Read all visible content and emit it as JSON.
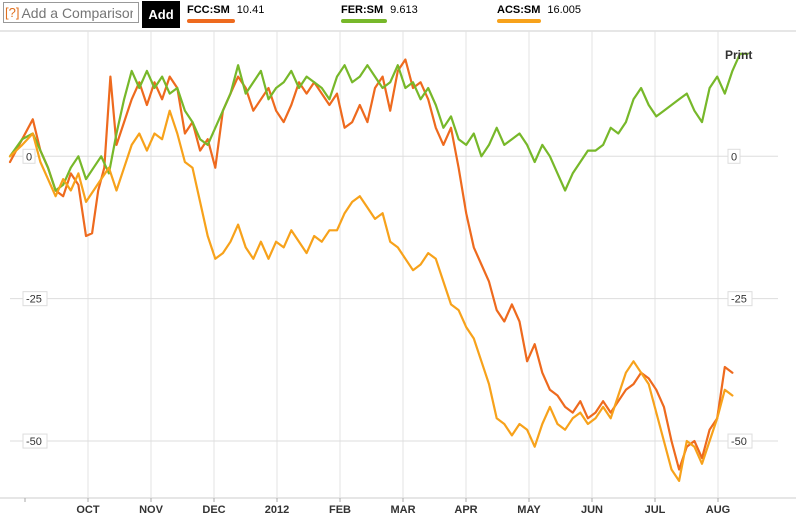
{
  "toolbar": {
    "help_label": "[?]",
    "compare_placeholder": "Add a Comparison",
    "add_label": "Add",
    "print_label": "Print"
  },
  "legend": [
    {
      "ticker": "FCC:SM",
      "value": "10.41",
      "color": "#ee6a1e"
    },
    {
      "ticker": "FER:SM",
      "value": "9.613",
      "color": "#77b82a"
    },
    {
      "ticker": "ACS:SM",
      "value": "16.005",
      "color": "#f7a21b"
    }
  ],
  "chart_data": {
    "type": "line",
    "x_labels": [
      "OCT",
      "NOV",
      "DEC",
      "2012",
      "FEB",
      "MAR",
      "APR",
      "MAY",
      "JUN",
      "JUL",
      "AUG"
    ],
    "y_ticks": [
      "0",
      "-25",
      "-50"
    ],
    "y_tick_values": [
      0,
      -25,
      -50
    ],
    "ylim": [
      -60,
      22
    ],
    "x_range": [
      0,
      50.5
    ],
    "grid": true,
    "series": [
      {
        "name": "FCC:SM",
        "color": "#ee6a1e",
        "points": [
          [
            0,
            -1
          ],
          [
            0.8,
            3
          ],
          [
            1.5,
            6.5
          ],
          [
            2,
            1
          ],
          [
            2.5,
            -2
          ],
          [
            3,
            -6
          ],
          [
            3.5,
            -7
          ],
          [
            4,
            -3
          ],
          [
            4.5,
            -5
          ],
          [
            5,
            -14
          ],
          [
            5.4,
            -13.5
          ],
          [
            5.8,
            -6
          ],
          [
            6.2,
            -2
          ],
          [
            6.6,
            14
          ],
          [
            7,
            2
          ],
          [
            7.5,
            6
          ],
          [
            8,
            10
          ],
          [
            8.5,
            13
          ],
          [
            9,
            9
          ],
          [
            9.5,
            13
          ],
          [
            10,
            10
          ],
          [
            10.5,
            14
          ],
          [
            11,
            12
          ],
          [
            11.5,
            4
          ],
          [
            12,
            6
          ],
          [
            12.5,
            1
          ],
          [
            13,
            3
          ],
          [
            13.5,
            -2
          ],
          [
            14,
            8
          ],
          [
            14.5,
            11
          ],
          [
            15,
            14
          ],
          [
            15.5,
            12
          ],
          [
            16,
            8
          ],
          [
            16.5,
            10
          ],
          [
            17,
            12
          ],
          [
            17.5,
            8
          ],
          [
            18,
            6
          ],
          [
            18.5,
            9
          ],
          [
            19,
            13
          ],
          [
            19.5,
            11
          ],
          [
            20,
            13
          ],
          [
            20.5,
            11
          ],
          [
            21,
            9
          ],
          [
            21.5,
            11
          ],
          [
            22,
            5
          ],
          [
            22.5,
            6
          ],
          [
            23,
            9
          ],
          [
            23.5,
            6
          ],
          [
            24,
            12
          ],
          [
            24.5,
            14
          ],
          [
            25,
            8
          ],
          [
            25.5,
            15
          ],
          [
            26,
            17
          ],
          [
            26.5,
            12
          ],
          [
            27,
            13
          ],
          [
            27.5,
            10
          ],
          [
            28,
            5
          ],
          [
            28.5,
            2
          ],
          [
            29,
            5
          ],
          [
            29.5,
            -2
          ],
          [
            30,
            -10
          ],
          [
            30.5,
            -16
          ],
          [
            31,
            -19
          ],
          [
            31.5,
            -22
          ],
          [
            32,
            -27
          ],
          [
            32.5,
            -29
          ],
          [
            33,
            -26
          ],
          [
            33.5,
            -29
          ],
          [
            34,
            -36
          ],
          [
            34.5,
            -33
          ],
          [
            35,
            -38
          ],
          [
            35.5,
            -41
          ],
          [
            36,
            -42
          ],
          [
            36.5,
            -44
          ],
          [
            37,
            -45
          ],
          [
            37.5,
            -43
          ],
          [
            38,
            -46
          ],
          [
            38.5,
            -45
          ],
          [
            39,
            -43
          ],
          [
            39.5,
            -45
          ],
          [
            40,
            -43
          ],
          [
            40.5,
            -41
          ],
          [
            41,
            -40
          ],
          [
            41.5,
            -38
          ],
          [
            42,
            -39
          ],
          [
            42.5,
            -41
          ],
          [
            43,
            -44
          ],
          [
            43.5,
            -50
          ],
          [
            44,
            -55
          ],
          [
            44.5,
            -51
          ],
          [
            45,
            -50
          ],
          [
            45.5,
            -53
          ],
          [
            46,
            -48
          ],
          [
            46.5,
            -46
          ],
          [
            47,
            -37
          ],
          [
            47.5,
            -38
          ]
        ]
      },
      {
        "name": "FER:SM",
        "color": "#77b82a",
        "points": [
          [
            0,
            0
          ],
          [
            0.8,
            3
          ],
          [
            1.5,
            4
          ],
          [
            2,
            1
          ],
          [
            2.5,
            -2
          ],
          [
            3,
            -6
          ],
          [
            3.5,
            -5
          ],
          [
            4,
            -2
          ],
          [
            4.5,
            0
          ],
          [
            5,
            -4
          ],
          [
            5.5,
            -2
          ],
          [
            6,
            0
          ],
          [
            6.5,
            -3
          ],
          [
            7,
            4
          ],
          [
            7.5,
            10
          ],
          [
            8,
            15
          ],
          [
            8.5,
            12
          ],
          [
            9,
            15
          ],
          [
            9.5,
            12
          ],
          [
            10,
            14
          ],
          [
            10.5,
            11
          ],
          [
            11,
            12
          ],
          [
            11.5,
            8
          ],
          [
            12,
            6
          ],
          [
            12.5,
            3
          ],
          [
            13,
            2
          ],
          [
            13.5,
            5
          ],
          [
            14,
            8
          ],
          [
            14.5,
            11
          ],
          [
            15,
            16
          ],
          [
            15.5,
            11
          ],
          [
            16,
            13
          ],
          [
            16.5,
            15
          ],
          [
            17,
            10
          ],
          [
            17.5,
            12
          ],
          [
            18,
            13
          ],
          [
            18.5,
            15
          ],
          [
            19,
            12
          ],
          [
            19.5,
            14
          ],
          [
            20,
            13
          ],
          [
            20.5,
            12
          ],
          [
            21,
            10
          ],
          [
            21.5,
            14
          ],
          [
            22,
            16
          ],
          [
            22.5,
            13
          ],
          [
            23,
            14
          ],
          [
            23.5,
            16
          ],
          [
            24,
            14
          ],
          [
            24.5,
            12
          ],
          [
            25,
            13
          ],
          [
            25.5,
            16
          ],
          [
            26,
            12
          ],
          [
            26.5,
            13
          ],
          [
            27,
            10
          ],
          [
            27.5,
            12
          ],
          [
            28,
            9
          ],
          [
            28.5,
            5
          ],
          [
            29,
            7
          ],
          [
            29.5,
            3
          ],
          [
            30,
            2
          ],
          [
            30.5,
            4
          ],
          [
            31,
            0
          ],
          [
            31.5,
            2
          ],
          [
            32,
            5
          ],
          [
            32.5,
            2
          ],
          [
            33,
            3
          ],
          [
            33.5,
            4
          ],
          [
            34,
            2
          ],
          [
            34.5,
            -1
          ],
          [
            35,
            2
          ],
          [
            35.5,
            0
          ],
          [
            36,
            -3
          ],
          [
            36.5,
            -6
          ],
          [
            37,
            -3
          ],
          [
            37.5,
            -1
          ],
          [
            38,
            1
          ],
          [
            38.5,
            1
          ],
          [
            39,
            2
          ],
          [
            39.5,
            5
          ],
          [
            40,
            4
          ],
          [
            40.5,
            6
          ],
          [
            41,
            10
          ],
          [
            41.5,
            12
          ],
          [
            42,
            9
          ],
          [
            42.5,
            7
          ],
          [
            43,
            8
          ],
          [
            43.5,
            9
          ],
          [
            44,
            10
          ],
          [
            44.5,
            11
          ],
          [
            45,
            8
          ],
          [
            45.5,
            6
          ],
          [
            46,
            12
          ],
          [
            46.5,
            14
          ],
          [
            47,
            11
          ],
          [
            47.5,
            15
          ],
          [
            48,
            18
          ],
          [
            48.5,
            18
          ]
        ]
      },
      {
        "name": "ACS:SM",
        "color": "#f7a21b",
        "points": [
          [
            0,
            0
          ],
          [
            0.8,
            2
          ],
          [
            1.5,
            4
          ],
          [
            2,
            -1
          ],
          [
            2.5,
            -4
          ],
          [
            3,
            -7
          ],
          [
            3.5,
            -4
          ],
          [
            4,
            -6
          ],
          [
            4.5,
            -3
          ],
          [
            5,
            -8
          ],
          [
            5.5,
            -6
          ],
          [
            6,
            -4
          ],
          [
            6.5,
            -2
          ],
          [
            7,
            -6
          ],
          [
            7.5,
            -2
          ],
          [
            8,
            2
          ],
          [
            8.5,
            4
          ],
          [
            9,
            1
          ],
          [
            9.5,
            4
          ],
          [
            10,
            3
          ],
          [
            10.5,
            8
          ],
          [
            11,
            4
          ],
          [
            11.5,
            -1
          ],
          [
            12,
            -2
          ],
          [
            12.5,
            -8
          ],
          [
            13,
            -14
          ],
          [
            13.5,
            -18
          ],
          [
            14,
            -17
          ],
          [
            14.5,
            -15
          ],
          [
            15,
            -12
          ],
          [
            15.5,
            -16
          ],
          [
            16,
            -18
          ],
          [
            16.5,
            -15
          ],
          [
            17,
            -18
          ],
          [
            17.5,
            -15
          ],
          [
            18,
            -16
          ],
          [
            18.5,
            -13
          ],
          [
            19,
            -15
          ],
          [
            19.5,
            -17
          ],
          [
            20,
            -14
          ],
          [
            20.5,
            -15
          ],
          [
            21,
            -13
          ],
          [
            21.5,
            -13
          ],
          [
            22,
            -10
          ],
          [
            22.5,
            -8
          ],
          [
            23,
            -7
          ],
          [
            23.5,
            -9
          ],
          [
            24,
            -11
          ],
          [
            24.5,
            -10
          ],
          [
            25,
            -15
          ],
          [
            25.5,
            -16
          ],
          [
            26,
            -18
          ],
          [
            26.5,
            -20
          ],
          [
            27,
            -19
          ],
          [
            27.5,
            -17
          ],
          [
            28,
            -18
          ],
          [
            28.5,
            -22
          ],
          [
            29,
            -26
          ],
          [
            29.5,
            -27
          ],
          [
            30,
            -30
          ],
          [
            30.5,
            -32
          ],
          [
            31,
            -36
          ],
          [
            31.5,
            -40
          ],
          [
            32,
            -46
          ],
          [
            32.5,
            -47
          ],
          [
            33,
            -49
          ],
          [
            33.5,
            -47
          ],
          [
            34,
            -48
          ],
          [
            34.5,
            -51
          ],
          [
            35,
            -47
          ],
          [
            35.5,
            -44
          ],
          [
            36,
            -47
          ],
          [
            36.5,
            -48
          ],
          [
            37,
            -46
          ],
          [
            37.5,
            -45
          ],
          [
            38,
            -47
          ],
          [
            38.5,
            -46
          ],
          [
            39,
            -44
          ],
          [
            39.5,
            -46
          ],
          [
            40,
            -42
          ],
          [
            40.5,
            -38
          ],
          [
            41,
            -36
          ],
          [
            41.5,
            -38
          ],
          [
            42,
            -40
          ],
          [
            42.5,
            -45
          ],
          [
            43,
            -50
          ],
          [
            43.5,
            -55
          ],
          [
            44,
            -57
          ],
          [
            44.5,
            -50
          ],
          [
            45,
            -51
          ],
          [
            45.5,
            -54
          ],
          [
            46,
            -50
          ],
          [
            46.5,
            -46
          ],
          [
            47,
            -41
          ],
          [
            47.5,
            -42
          ]
        ]
      }
    ]
  }
}
